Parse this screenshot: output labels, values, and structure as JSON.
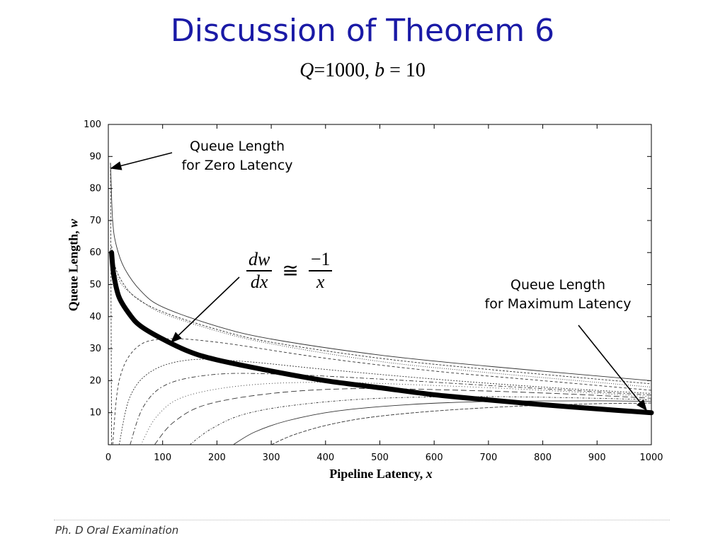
{
  "slide": {
    "title": "Discussion of Theorem 6",
    "subtitle_q": "Q",
    "subtitle_rest": "=1000, ",
    "subtitle_b": "b",
    "subtitle_tail": " = 10",
    "footer": "Ph. D Oral Examination"
  },
  "annotations": {
    "zero_latency_line1": "Queue Length",
    "zero_latency_line2": "for Zero Latency",
    "max_latency_line1": "Queue Length",
    "max_latency_line2": "for Maximum Latency",
    "equation_num": "dw",
    "equation_den": "dx",
    "equation_approx": "≅",
    "equation_rhs_num": "−1",
    "equation_rhs_den": "x"
  },
  "chart_data": {
    "type": "line",
    "xlabel": "Pipeline Latency, ",
    "xlabel_var": "x",
    "ylabel": "Queue Length, ",
    "ylabel_var": "w",
    "xlim": [
      0,
      1000
    ],
    "ylim": [
      0,
      100
    ],
    "x_ticks": [
      0,
      100,
      200,
      300,
      400,
      500,
      600,
      700,
      800,
      900,
      1000
    ],
    "y_ticks": [
      10,
      20,
      30,
      40,
      50,
      60,
      70,
      80,
      90,
      100
    ],
    "grid": false,
    "bold_curve": {
      "x": [
        6,
        10,
        20,
        40,
        60,
        100,
        150,
        200,
        300,
        400,
        500,
        600,
        700,
        800,
        900,
        1000
      ],
      "y": [
        60,
        53,
        46,
        40.5,
        37,
        33,
        29,
        26.5,
        23,
        20,
        17.8,
        15.6,
        14,
        12.5,
        11.2,
        10
      ]
    },
    "upper_curves": [
      {
        "x": [
          4,
          8,
          15,
          30,
          60,
          100,
          200,
          300,
          500,
          700,
          1000
        ],
        "y": [
          88,
          70,
          62,
          55,
          48,
          43,
          37,
          33,
          28,
          24.5,
          20
        ]
      },
      {
        "x": [
          6,
          12,
          25,
          50,
          100,
          200,
          300,
          500,
          700,
          1000
        ],
        "y": [
          62,
          56,
          51,
          46,
          41.5,
          36,
          32,
          27,
          23.5,
          19
        ]
      },
      {
        "x": [
          8,
          15,
          30,
          60,
          100,
          200,
          300,
          500,
          700,
          1000
        ],
        "y": [
          58,
          53,
          49,
          45,
          41,
          35.5,
          31.5,
          26,
          22.5,
          18
        ]
      }
    ],
    "rising_curves": [
      {
        "x0": 8,
        "asymptote": 33,
        "x": [
          8,
          20,
          50,
          100,
          200,
          400,
          600,
          800,
          1000
        ],
        "y": [
          0,
          20,
          30,
          33,
          32,
          27,
          23,
          20,
          17
        ]
      },
      {
        "x0": 20,
        "asymptote": 27,
        "x": [
          20,
          40,
          80,
          150,
          250,
          400,
          600,
          800,
          1000
        ],
        "y": [
          0,
          15,
          23,
          26.5,
          26,
          23.5,
          20.5,
          18,
          16
        ]
      },
      {
        "x0": 40,
        "asymptote": 23,
        "x": [
          40,
          65,
          110,
          200,
          320,
          500,
          700,
          1000
        ],
        "y": [
          0,
          12,
          19,
          22,
          22,
          20.5,
          18.5,
          15.5
        ]
      },
      {
        "x0": 60,
        "asymptote": 20,
        "x": [
          60,
          90,
          140,
          250,
          400,
          600,
          800,
          1000
        ],
        "y": [
          0,
          9,
          15,
          18.5,
          19.5,
          18.5,
          17,
          15
        ]
      },
      {
        "x0": 85,
        "asymptote": 18,
        "x": [
          85,
          120,
          180,
          300,
          450,
          650,
          850,
          1000
        ],
        "y": [
          0,
          7,
          12.5,
          16,
          17.5,
          17,
          15.8,
          14.5
        ]
      },
      {
        "x0": 150,
        "asymptote": 16,
        "x": [
          150,
          190,
          250,
          350,
          500,
          700,
          900,
          1000
        ],
        "y": [
          0,
          5,
          9.5,
          12.5,
          14.5,
          15,
          14.5,
          14
        ]
      },
      {
        "x0": 230,
        "asymptote": 15,
        "x": [
          230,
          270,
          330,
          420,
          550,
          700,
          900,
          1000
        ],
        "y": [
          0,
          4,
          7.5,
          10.5,
          12.5,
          13.5,
          13.7,
          13.5
        ]
      },
      {
        "x0": 300,
        "asymptote": 14,
        "x": [
          300,
          340,
          400,
          480,
          600,
          750,
          900,
          1000
        ],
        "y": [
          0,
          3,
          6,
          8.5,
          10.5,
          12,
          12.8,
          13
        ]
      }
    ]
  }
}
